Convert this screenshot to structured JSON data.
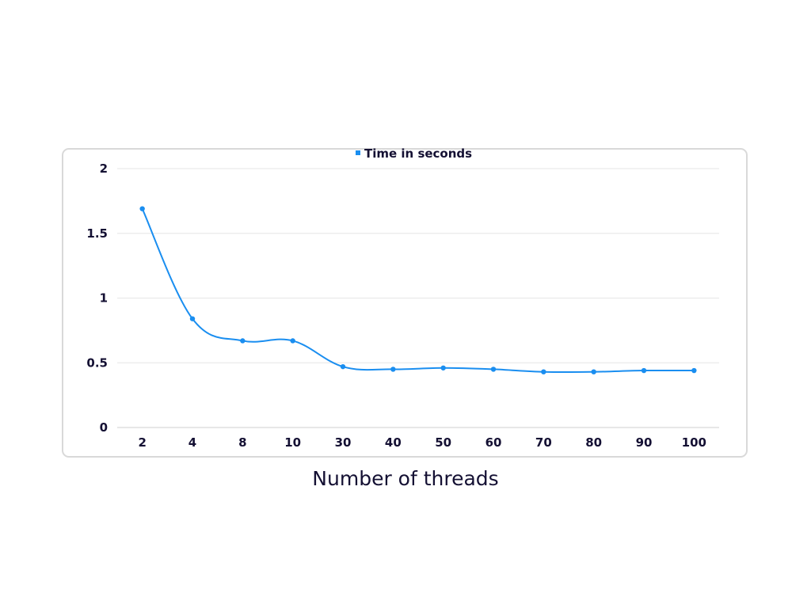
{
  "chart_data": {
    "type": "line",
    "categories": [
      "2",
      "4",
      "8",
      "10",
      "30",
      "40",
      "50",
      "60",
      "70",
      "80",
      "90",
      "100"
    ],
    "series": [
      {
        "name": "Time in seconds",
        "values": [
          1.69,
          0.84,
          0.67,
          0.67,
          0.47,
          0.45,
          0.46,
          0.45,
          0.43,
          0.43,
          0.44,
          0.44
        ]
      }
    ],
    "title": "",
    "xlabel": "Number of threads",
    "ylabel": "",
    "ylim": [
      0,
      2
    ],
    "yticks": [
      "0",
      "0.5",
      "1",
      "1.5",
      "2"
    ],
    "grid": true,
    "legend_position": "top-center",
    "smooth": true,
    "colors": {
      "series": "#1a8ef0",
      "grid": "#e6e6e6",
      "text": "#141033",
      "frame": "#d9d9d9"
    }
  }
}
